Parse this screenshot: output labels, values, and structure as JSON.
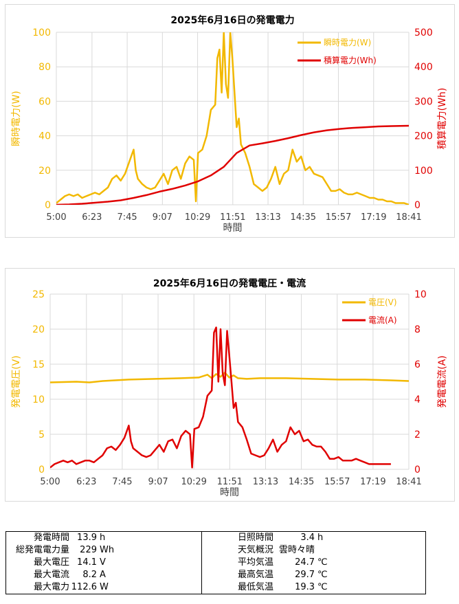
{
  "colors": {
    "instant": "#f2b800",
    "cumulative": "#e00000",
    "voltage": "#f2b800",
    "current": "#e00000",
    "grid": "#d9d9d9"
  },
  "chart_data": [
    {
      "type": "line",
      "title": "2025年6月16日の発電電力",
      "xlabel": "時間",
      "ylabel_left": "瞬時電力(W)",
      "ylabel_right": "積算電力(Wh)",
      "x_ticks": [
        "5:00",
        "6:23",
        "7:45",
        "9:07",
        "10:29",
        "11:51",
        "13:13",
        "14:35",
        "15:57",
        "17:19",
        "18:41"
      ],
      "x_range_minutes": [
        300,
        1121
      ],
      "ylim_left": [
        0,
        100
      ],
      "yticks_left": [
        0,
        20,
        40,
        60,
        80,
        100
      ],
      "ylim_right": [
        0,
        500
      ],
      "yticks_right": [
        0,
        100,
        200,
        300,
        400,
        500
      ],
      "legend_position": "top-right",
      "grid": true,
      "series": [
        {
          "name": "瞬時電力(W)",
          "axis": "left",
          "x": [
            "5:00",
            "5:10",
            "5:20",
            "5:30",
            "5:40",
            "5:50",
            "6:00",
            "6:10",
            "6:20",
            "6:30",
            "6:40",
            "6:50",
            "7:00",
            "7:10",
            "7:20",
            "7:30",
            "7:40",
            "7:50",
            "8:00",
            "8:05",
            "8:10",
            "8:20",
            "8:30",
            "8:40",
            "8:50",
            "9:00",
            "9:10",
            "9:20",
            "9:30",
            "9:40",
            "9:50",
            "10:00",
            "10:10",
            "10:20",
            "10:25",
            "10:30",
            "10:40",
            "10:50",
            "11:00",
            "11:10",
            "11:15",
            "11:20",
            "11:25",
            "11:30",
            "11:35",
            "11:40",
            "11:45",
            "11:50",
            "11:55",
            "12:00",
            "12:05",
            "12:10",
            "12:20",
            "12:30",
            "12:40",
            "12:50",
            "13:00",
            "13:10",
            "13:20",
            "13:30",
            "13:40",
            "13:50",
            "14:00",
            "14:10",
            "14:20",
            "14:30",
            "14:40",
            "14:50",
            "15:00",
            "15:10",
            "15:20",
            "15:30",
            "15:40",
            "15:50",
            "16:00",
            "16:10",
            "16:20",
            "16:30",
            "16:40",
            "16:50",
            "17:00",
            "17:10",
            "17:20",
            "17:30",
            "17:40",
            "17:50",
            "18:00",
            "18:10",
            "18:20",
            "18:30",
            "18:41"
          ],
          "values": [
            1,
            3,
            5,
            6,
            5,
            6,
            4,
            5,
            6,
            7,
            6,
            8,
            10,
            15,
            17,
            14,
            18,
            25,
            32,
            20,
            15,
            12,
            10,
            9,
            10,
            14,
            18,
            12,
            20,
            22,
            15,
            24,
            28,
            26,
            2,
            30,
            32,
            40,
            55,
            58,
            85,
            90,
            65,
            100,
            70,
            62,
            100,
            85,
            65,
            45,
            50,
            35,
            30,
            22,
            12,
            10,
            8,
            10,
            15,
            22,
            12,
            18,
            20,
            32,
            25,
            28,
            20,
            22,
            18,
            17,
            16,
            12,
            8,
            8,
            9,
            7,
            6,
            6,
            7,
            6,
            5,
            4,
            4,
            3,
            3,
            2,
            2,
            1,
            1,
            1,
            0
          ],
          "notes": "peaks exceed axis maximum and are clipped at 100"
        },
        {
          "name": "積算電力(Wh)",
          "axis": "right",
          "x": [
            "5:00",
            "5:30",
            "6:00",
            "6:30",
            "7:00",
            "7:30",
            "8:00",
            "8:30",
            "9:00",
            "9:30",
            "10:00",
            "10:30",
            "11:00",
            "11:30",
            "12:00",
            "12:30",
            "13:00",
            "13:30",
            "14:00",
            "14:30",
            "15:00",
            "15:30",
            "16:00",
            "16:30",
            "17:00",
            "17:30",
            "18:00",
            "18:41"
          ],
          "values": [
            0,
            1,
            3,
            6,
            9,
            13,
            20,
            28,
            38,
            46,
            56,
            68,
            85,
            110,
            150,
            172,
            178,
            185,
            193,
            202,
            210,
            216,
            220,
            223,
            225,
            227,
            228,
            229
          ]
        }
      ]
    },
    {
      "type": "line",
      "title": "2025年6月16日の発電電圧・電流",
      "xlabel": "時間",
      "ylabel_left": "発電電圧(V)",
      "ylabel_right": "発電電流(A)",
      "x_ticks": [
        "5:00",
        "6:23",
        "7:45",
        "9:07",
        "10:29",
        "11:51",
        "13:13",
        "14:35",
        "15:57",
        "17:19",
        "18:41"
      ],
      "x_range_minutes": [
        300,
        1121
      ],
      "ylim_left": [
        0,
        25
      ],
      "yticks_left": [
        0,
        5,
        10,
        15,
        20,
        25
      ],
      "ylim_right": [
        0,
        10
      ],
      "yticks_right": [
        0,
        2,
        4,
        6,
        8,
        10
      ],
      "legend_position": "top-right",
      "grid": true,
      "series": [
        {
          "name": "電圧(V)",
          "axis": "left",
          "x": [
            "5:00",
            "6:00",
            "6:30",
            "7:00",
            "8:00",
            "9:00",
            "10:00",
            "10:40",
            "11:00",
            "11:10",
            "11:20",
            "11:30",
            "11:40",
            "11:50",
            "12:00",
            "12:10",
            "12:30",
            "13:00",
            "14:00",
            "15:00",
            "16:00",
            "17:00",
            "18:00",
            "18:41"
          ],
          "values": [
            12.4,
            12.5,
            12.4,
            12.6,
            12.8,
            12.9,
            13.0,
            13.1,
            13.5,
            13.0,
            13.6,
            13.2,
            13.8,
            13.1,
            13.4,
            13.0,
            12.9,
            13.0,
            13.0,
            12.9,
            12.8,
            12.8,
            12.7,
            12.6
          ]
        },
        {
          "name": "電流(A)",
          "axis": "right",
          "x": [
            "5:00",
            "5:10",
            "5:20",
            "5:30",
            "5:40",
            "5:50",
            "6:00",
            "6:10",
            "6:20",
            "6:30",
            "6:40",
            "6:50",
            "7:00",
            "7:10",
            "7:20",
            "7:30",
            "7:40",
            "7:50",
            "8:00",
            "8:05",
            "8:10",
            "8:20",
            "8:30",
            "8:40",
            "8:50",
            "9:00",
            "9:10",
            "9:20",
            "9:30",
            "9:40",
            "9:50",
            "10:00",
            "10:10",
            "10:20",
            "10:25",
            "10:30",
            "10:40",
            "10:50",
            "11:00",
            "11:10",
            "11:15",
            "11:20",
            "11:25",
            "11:30",
            "11:35",
            "11:40",
            "11:45",
            "11:50",
            "11:55",
            "12:00",
            "12:05",
            "12:10",
            "12:20",
            "12:30",
            "12:40",
            "12:50",
            "13:00",
            "13:10",
            "13:20",
            "13:30",
            "13:40",
            "13:50",
            "14:00",
            "14:10",
            "14:20",
            "14:30",
            "14:40",
            "14:50",
            "15:00",
            "15:10",
            "15:20",
            "15:30",
            "15:40",
            "15:50",
            "16:00",
            "16:10",
            "16:20",
            "16:30",
            "16:40",
            "16:50",
            "17:00",
            "17:10",
            "17:20",
            "17:30",
            "17:40",
            "17:50",
            "18:00"
          ],
          "values": [
            0.1,
            0.3,
            0.4,
            0.5,
            0.4,
            0.5,
            0.3,
            0.4,
            0.5,
            0.5,
            0.4,
            0.6,
            0.8,
            1.2,
            1.3,
            1.1,
            1.4,
            1.8,
            2.5,
            1.6,
            1.2,
            1.0,
            0.8,
            0.7,
            0.8,
            1.1,
            1.4,
            1.0,
            1.6,
            1.7,
            1.2,
            1.9,
            2.2,
            2.0,
            0.1,
            2.3,
            2.4,
            3.0,
            4.2,
            4.5,
            7.8,
            8.1,
            5.0,
            8.0,
            5.5,
            4.8,
            7.9,
            6.5,
            5.0,
            3.5,
            3.8,
            2.7,
            2.4,
            1.7,
            0.9,
            0.8,
            0.7,
            0.8,
            1.2,
            1.7,
            1.0,
            1.4,
            1.6,
            2.4,
            2.0,
            2.2,
            1.6,
            1.7,
            1.4,
            1.3,
            1.3,
            1.0,
            0.6,
            0.6,
            0.7,
            0.5,
            0.5,
            0.5,
            0.6,
            0.5,
            0.4,
            0.3,
            0.3,
            0.3,
            0.3,
            0.3,
            0.3
          ]
        }
      ]
    }
  ],
  "summary": {
    "rows": [
      {
        "l_label": "発電時間",
        "l_value": "13.9",
        "l_unit": "h",
        "r_label": "日照時間",
        "r_value": "3.4",
        "r_unit": "h"
      },
      {
        "l_label": "総発電電力量",
        "l_value": "229",
        "l_unit": "Wh",
        "r_label": "天気概況",
        "r_value": "雲時々晴",
        "r_unit": ""
      },
      {
        "l_label": "最大電圧",
        "l_value": "14.1",
        "l_unit": "V",
        "r_label": "平均気温",
        "r_value": "24.7",
        "r_unit": "℃"
      },
      {
        "l_label": "最大電流",
        "l_value": "8.2",
        "l_unit": "A",
        "r_label": "最高気温",
        "r_value": "29.7",
        "r_unit": "℃"
      },
      {
        "l_label": "最大電力",
        "l_value": "112.6",
        "l_unit": "W",
        "r_label": "最低気温",
        "r_value": "19.3",
        "r_unit": "℃"
      }
    ]
  }
}
